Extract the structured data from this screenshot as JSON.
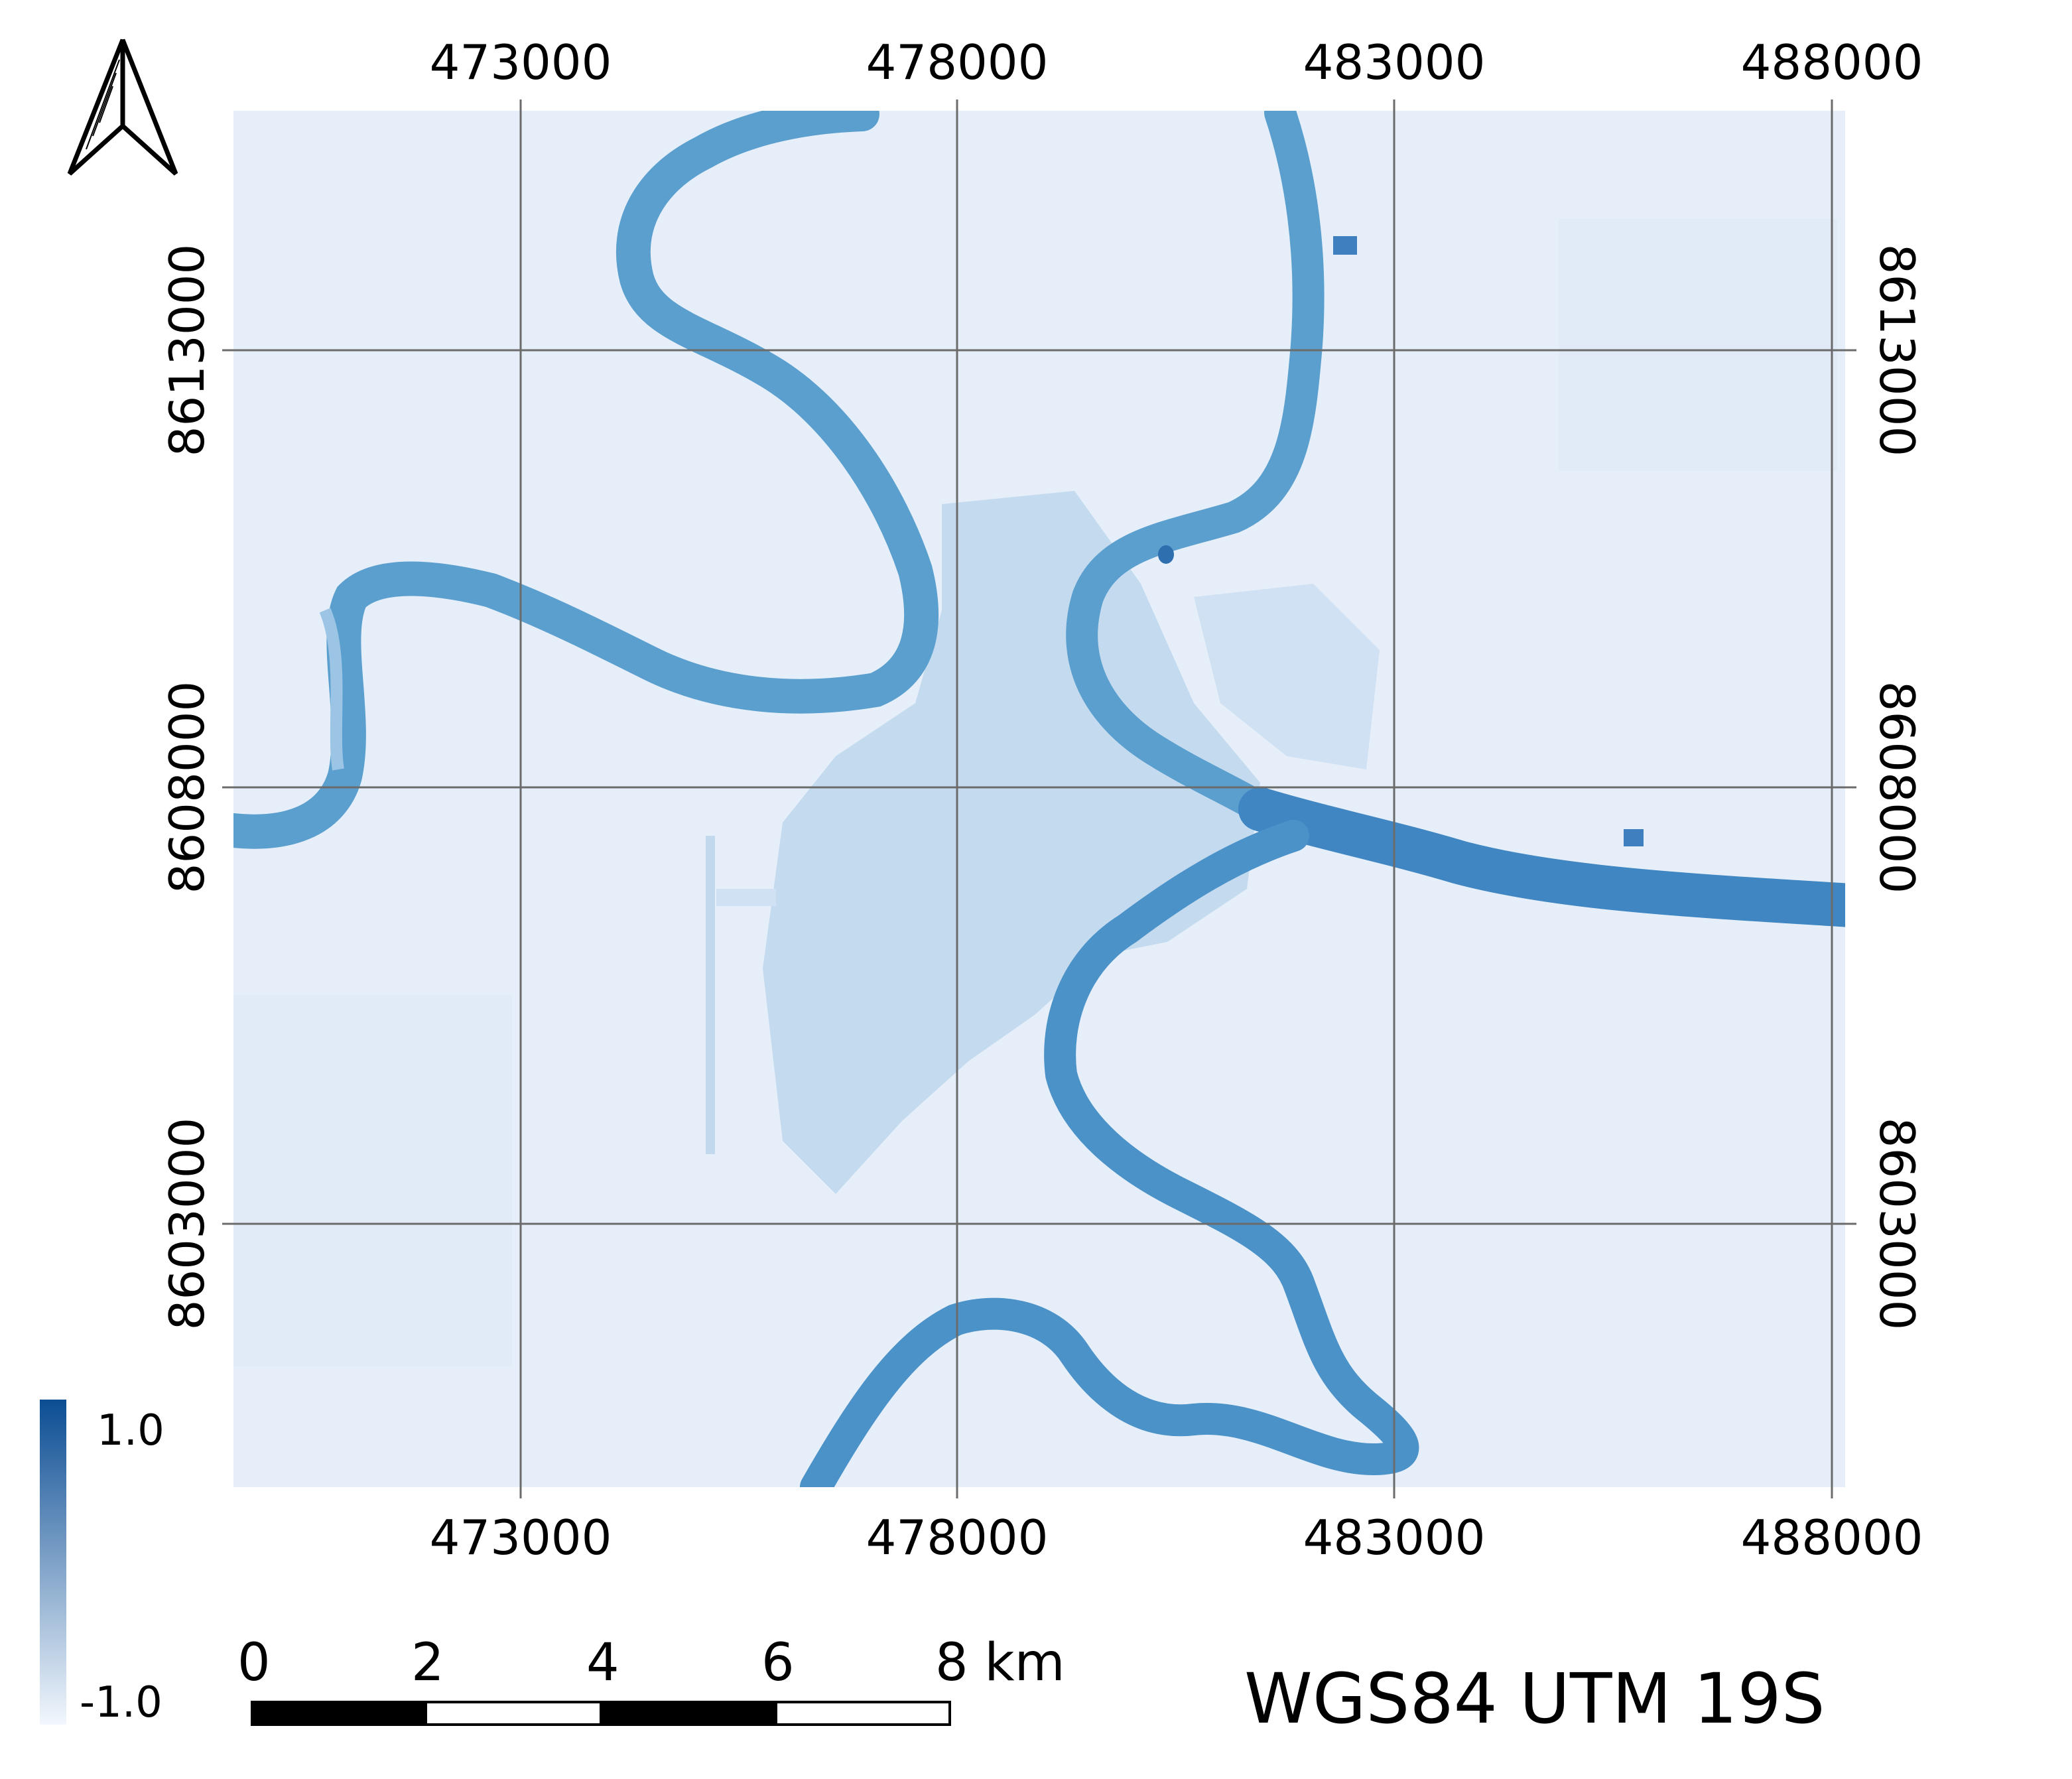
{
  "map": {
    "crs_label": "WGS84 UTM 19S",
    "x_ticks": [
      "473000",
      "478000",
      "483000",
      "488000"
    ],
    "y_ticks": [
      "8613000",
      "8608000",
      "8603000"
    ],
    "colors": {
      "background": "#e6eff9",
      "river": "#5b9fcf",
      "river_dark": "#3f86c3",
      "urban": "#b9d3ea",
      "grid": "#6b6b6b"
    }
  },
  "legend": {
    "max_label": "1.0",
    "min_label": "-1.0",
    "color_max": "#0b4d93",
    "color_min": "#f2f7fd"
  },
  "scalebar": {
    "labels": [
      "0",
      "2",
      "4",
      "6",
      "8 km"
    ]
  },
  "north_arrow": {
    "icon": "north-arrow-icon"
  }
}
